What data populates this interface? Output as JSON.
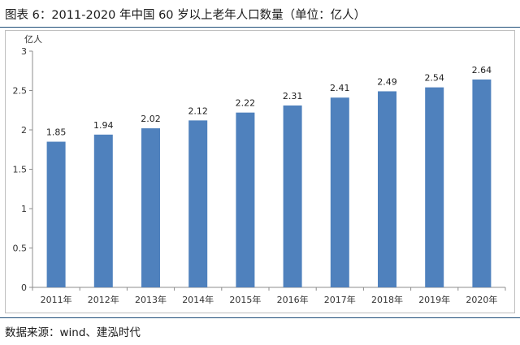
{
  "figure": {
    "title": "图表 6：2011-2020 年中国 60 岁以上老年人口数量（单位：亿人）",
    "source": "数据来源：wind、建泓时代"
  },
  "chart_data": {
    "type": "bar",
    "title": "",
    "ylabel": "亿人",
    "xlabel": "",
    "categories": [
      "2011年",
      "2012年",
      "2013年",
      "2014年",
      "2015年",
      "2016年",
      "2017年",
      "2018年",
      "2019年",
      "2020年"
    ],
    "values": [
      1.85,
      1.94,
      2.02,
      2.12,
      2.22,
      2.31,
      2.41,
      2.49,
      2.54,
      2.64
    ],
    "data_labels": [
      "1.85",
      "1.94",
      "2.02",
      "2.12",
      "2.22",
      "2.31",
      "2.41",
      "2.49",
      "2.54",
      "2.64"
    ],
    "ylim": [
      0,
      3
    ],
    "yticks": [
      0,
      0.5,
      1,
      1.5,
      2,
      2.5,
      3
    ],
    "ytick_labels": [
      "0",
      "0.5",
      "1",
      "1.5",
      "2",
      "2.5",
      "3"
    ],
    "grid": false,
    "bar_color": "#4f81bd"
  }
}
